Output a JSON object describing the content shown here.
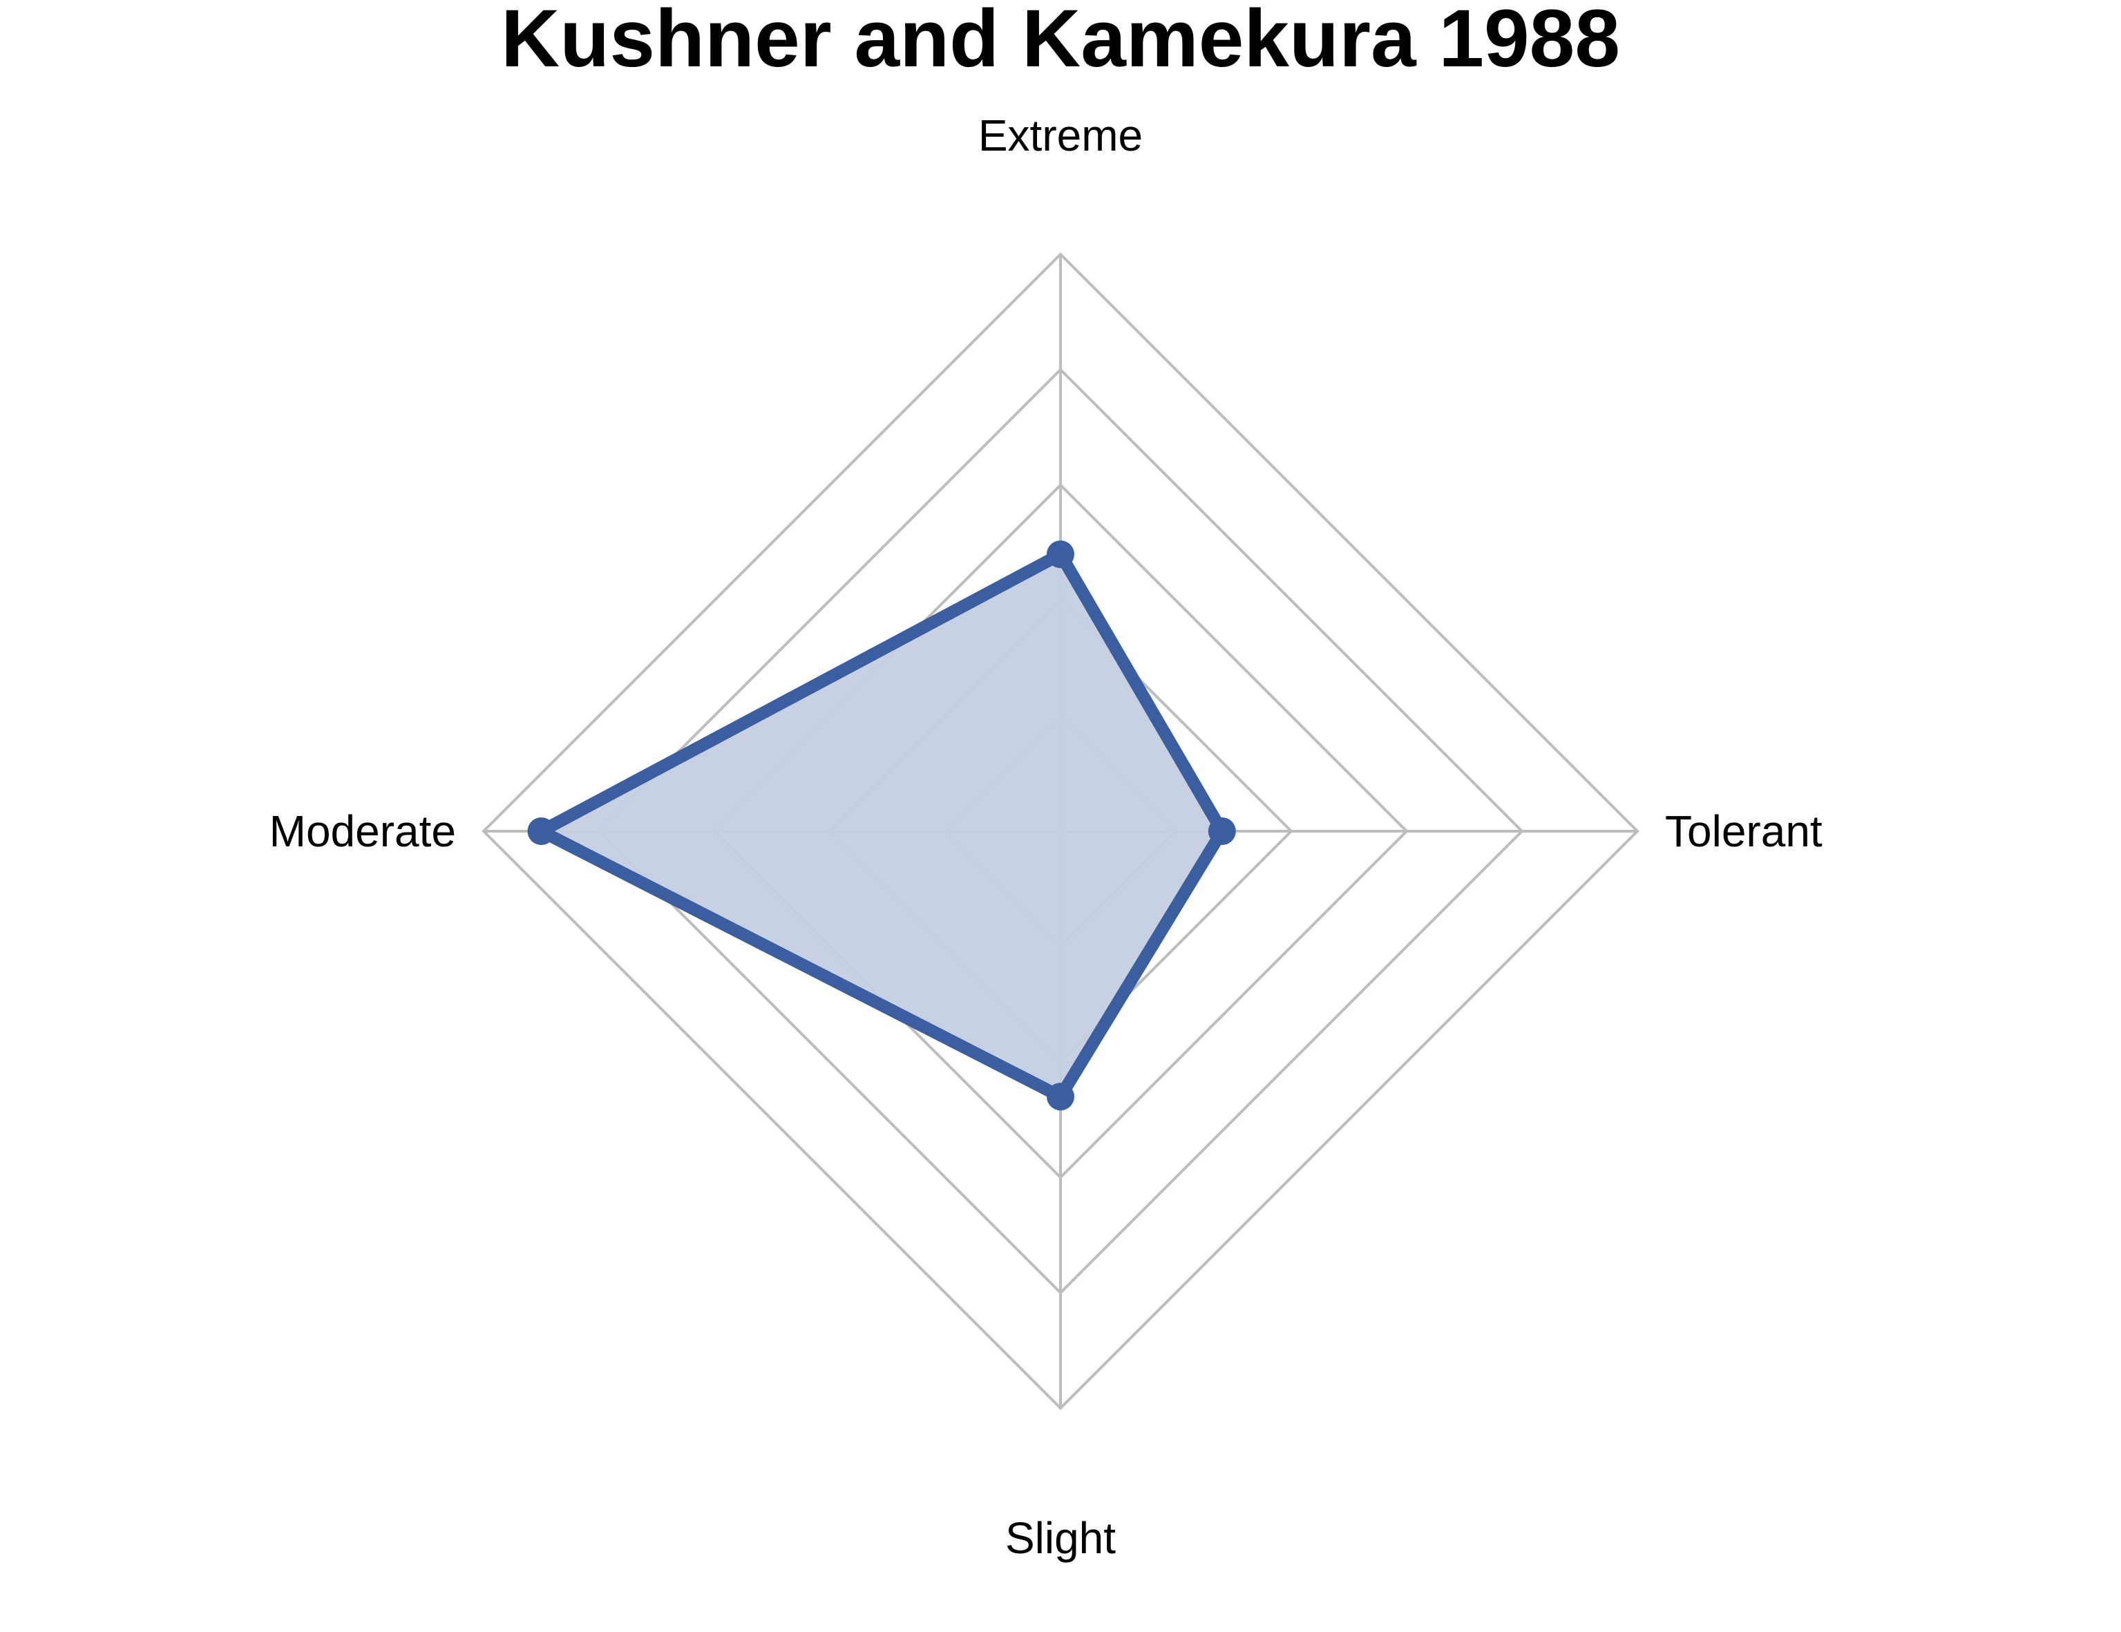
{
  "chart_data": {
    "type": "radar",
    "title": "Kushner and Kamekura 1988",
    "axes": [
      "Extreme",
      "Tolerant",
      "Slight",
      "Moderate"
    ],
    "rlim": [
      0,
      5
    ],
    "ring_count": 5,
    "grid": true,
    "series": [
      {
        "values": [
          2.4,
          1.4,
          2.3,
          4.5
        ]
      }
    ],
    "colors": {
      "line": "#3b5ea0",
      "fill": "#c5cfe1",
      "grid": "#bdbdbd"
    }
  }
}
